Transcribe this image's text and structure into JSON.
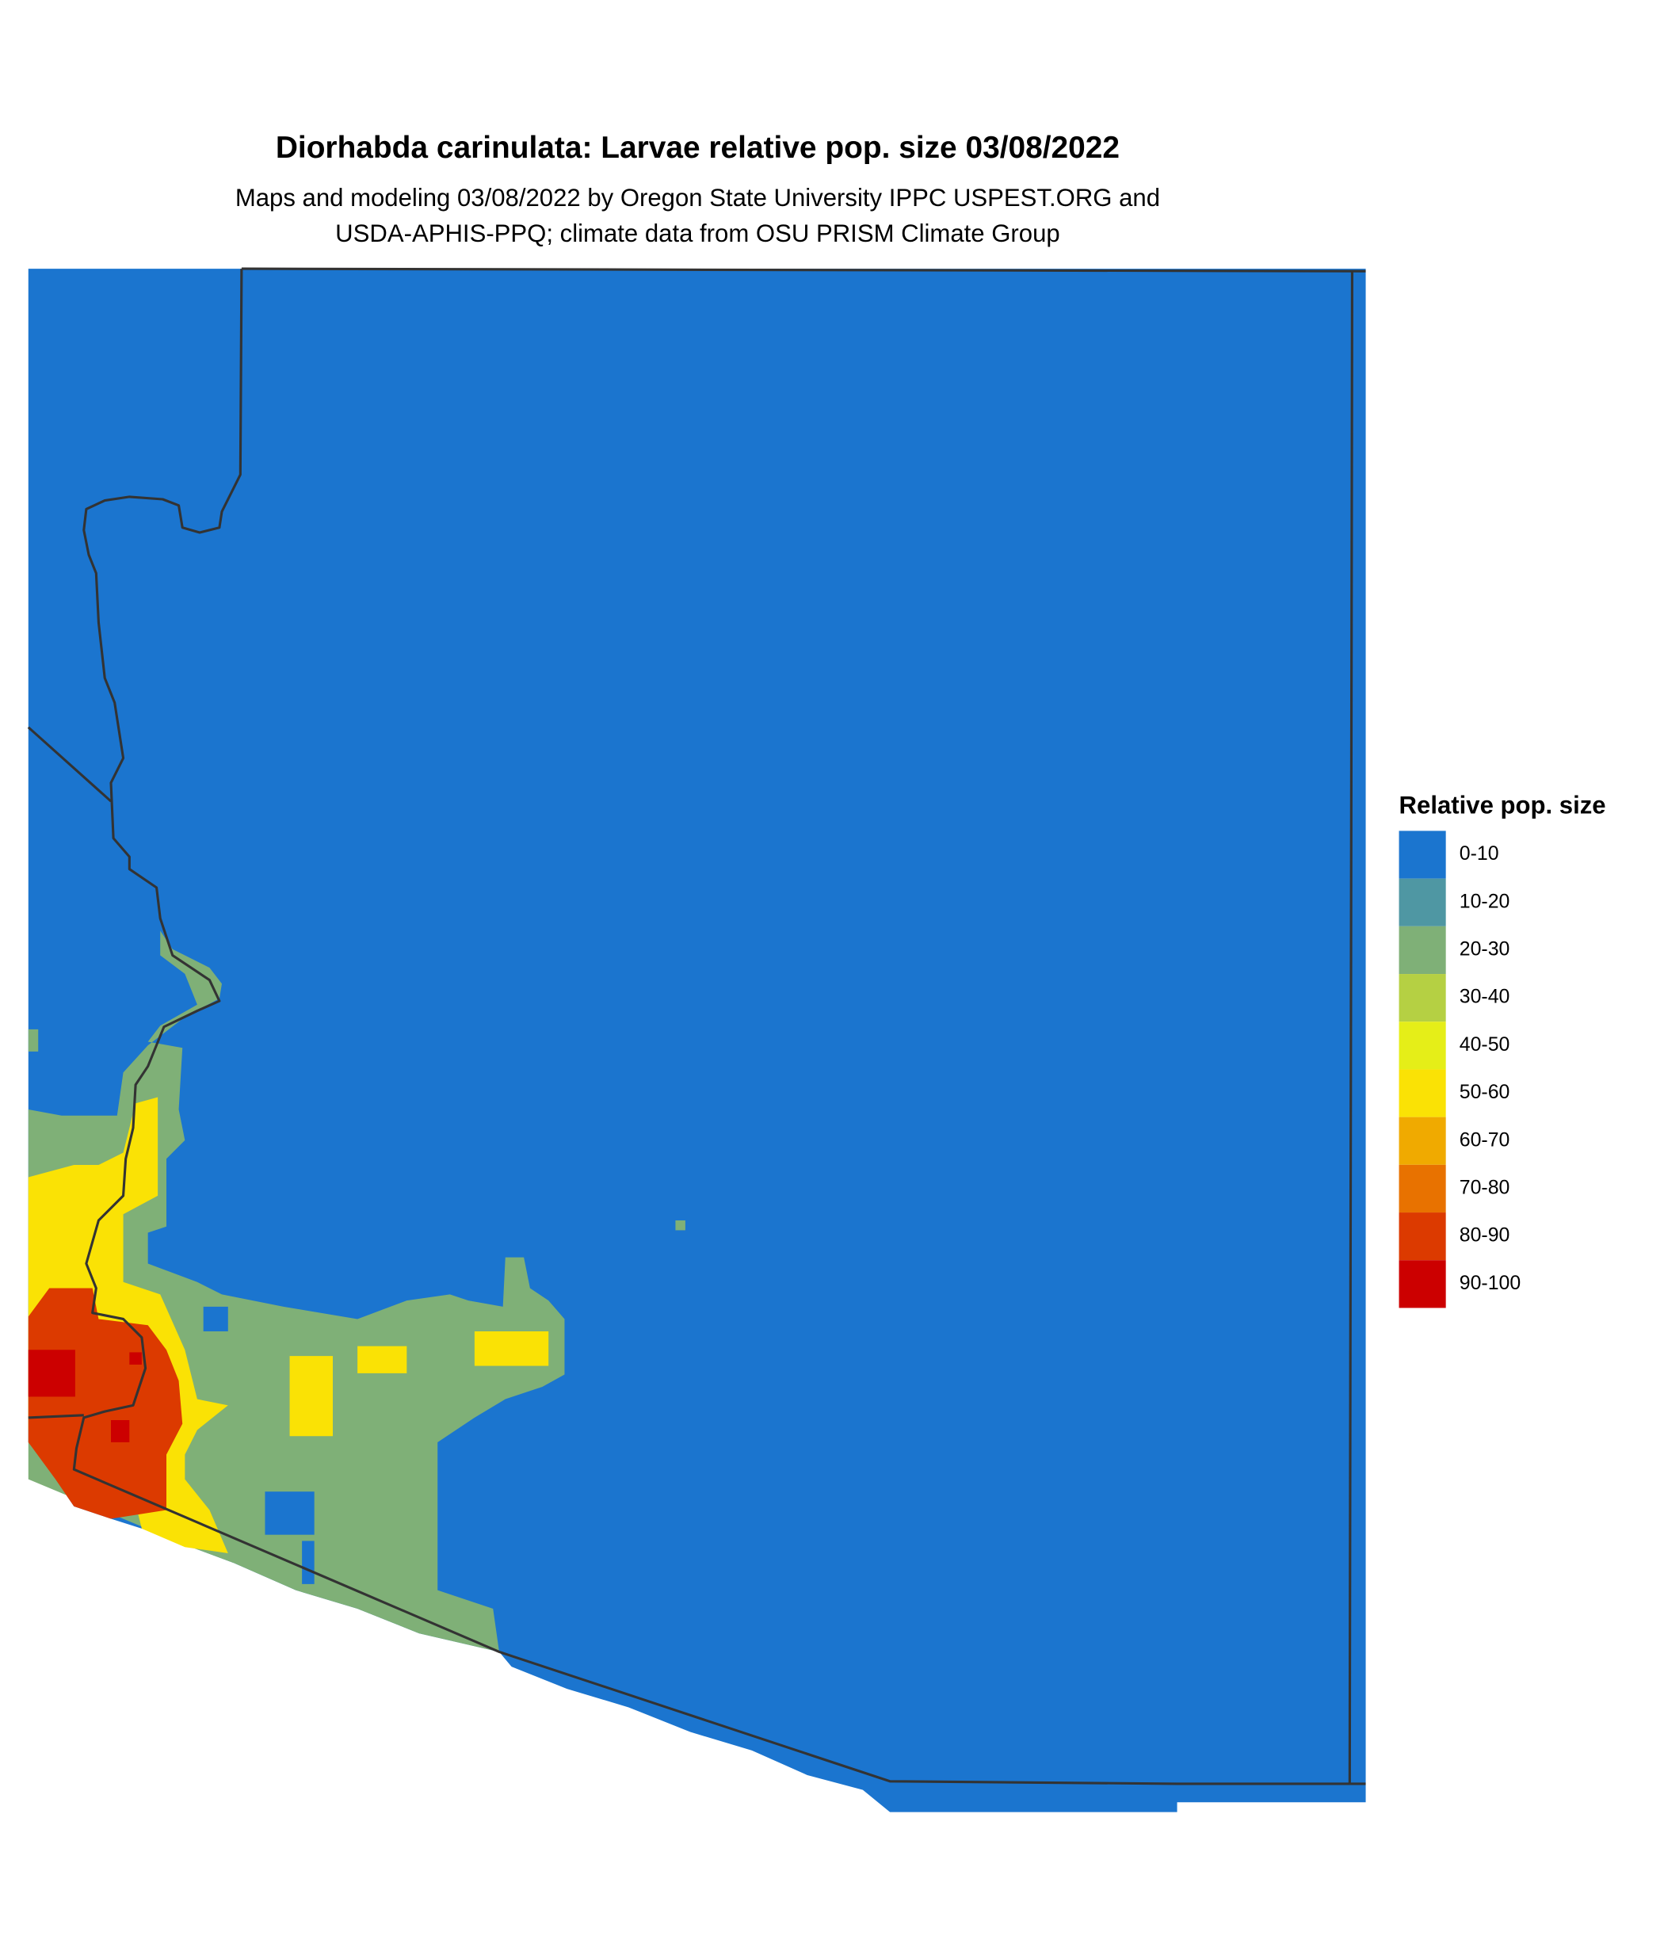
{
  "chart_data": {
    "type": "map",
    "title": "Diorhabda carinulata: Larvae relative pop. size 03/08/2022",
    "subtitle_lines": [
      "Maps and modeling 03/08/2022 by Oregon State University IPPC USPEST.ORG and",
      "USDA-APHIS-PPQ; climate data from OSU PRISM Climate Group"
    ],
    "legend": {
      "title": "Relative pop. size",
      "items": [
        {
          "label": "0-10",
          "color": "#1b75cf"
        },
        {
          "label": "10-20",
          "color": "#4f97a3"
        },
        {
          "label": "20-30",
          "color": "#7fb077"
        },
        {
          "label": "30-40",
          "color": "#b5d043"
        },
        {
          "label": "40-50",
          "color": "#e5ee18"
        },
        {
          "label": "50-60",
          "color": "#fae205"
        },
        {
          "label": "60-70",
          "color": "#f0aa00"
        },
        {
          "label": "70-80",
          "color": "#e87200"
        },
        {
          "label": "80-90",
          "color": "#dc3a00"
        },
        {
          "label": "90-100",
          "color": "#cc0000"
        }
      ]
    }
  }
}
